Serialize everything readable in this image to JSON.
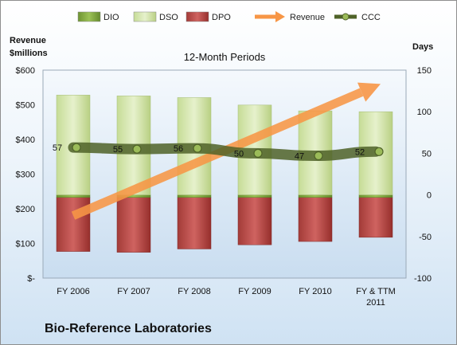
{
  "company": "Bio-Reference Laboratories",
  "chart_data": {
    "type": "bar",
    "title": "12-Month Periods",
    "y_left_label": [
      "Revenue",
      "$millions"
    ],
    "y_right_label": "Days",
    "categories": [
      [
        "FY 2006"
      ],
      [
        "FY 2007"
      ],
      [
        "FY 2008"
      ],
      [
        "FY 2009"
      ],
      [
        "FY 2010"
      ],
      [
        "FY & TTM",
        "2011"
      ]
    ],
    "y_left_ticks": [
      "$-",
      "$100",
      "$200",
      "$300",
      "$400",
      "$500",
      "$600"
    ],
    "y_left_range": [
      0,
      600
    ],
    "y_right_ticks": [
      "-100",
      "-50",
      "0",
      "50",
      "100",
      "150"
    ],
    "y_right_range": [
      -100,
      150
    ],
    "grid": false,
    "legend_position": "top",
    "legend": [
      "DIO",
      "DSO",
      "DPO",
      "Revenue",
      "CCC"
    ],
    "series": [
      {
        "name": "DIO",
        "axis": "right",
        "stacked": true,
        "color": "#7fa83a",
        "values": [
          -3,
          -3,
          -3,
          -3,
          -3,
          -3
        ]
      },
      {
        "name": "DSO",
        "axis": "right",
        "stacked": true,
        "color": "#d7e8b0",
        "values": [
          120,
          119,
          117,
          108,
          101,
          100
        ]
      },
      {
        "name": "DPO",
        "axis": "right",
        "stacked": true,
        "color": "#c0504d",
        "values": [
          -65,
          -66,
          -62,
          -57,
          -53,
          -48
        ]
      },
      {
        "name": "CCC",
        "axis": "right",
        "type": "line",
        "color": "#4f6228",
        "values": [
          57,
          55,
          56,
          50,
          47,
          52
        ],
        "labels": [
          "57",
          "55",
          "56",
          "50",
          "47",
          "52"
        ]
      },
      {
        "name": "Revenue",
        "axis": "left",
        "type": "arrow",
        "color": "#f79646",
        "values": [
          180,
          240,
          300,
          365,
          460,
          560
        ]
      }
    ]
  }
}
